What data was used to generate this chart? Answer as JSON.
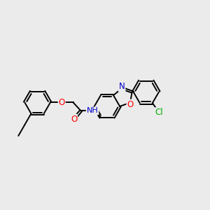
{
  "bg_color": "#ebebeb",
  "bond_color": "#000000",
  "bond_width": 1.4,
  "dbo": 0.055,
  "atom_colors": {
    "O": "#ff0000",
    "N": "#0000cd",
    "Cl": "#00aa00",
    "C": "#000000"
  },
  "font_size": 8.5,
  "font_size_small": 7.5
}
